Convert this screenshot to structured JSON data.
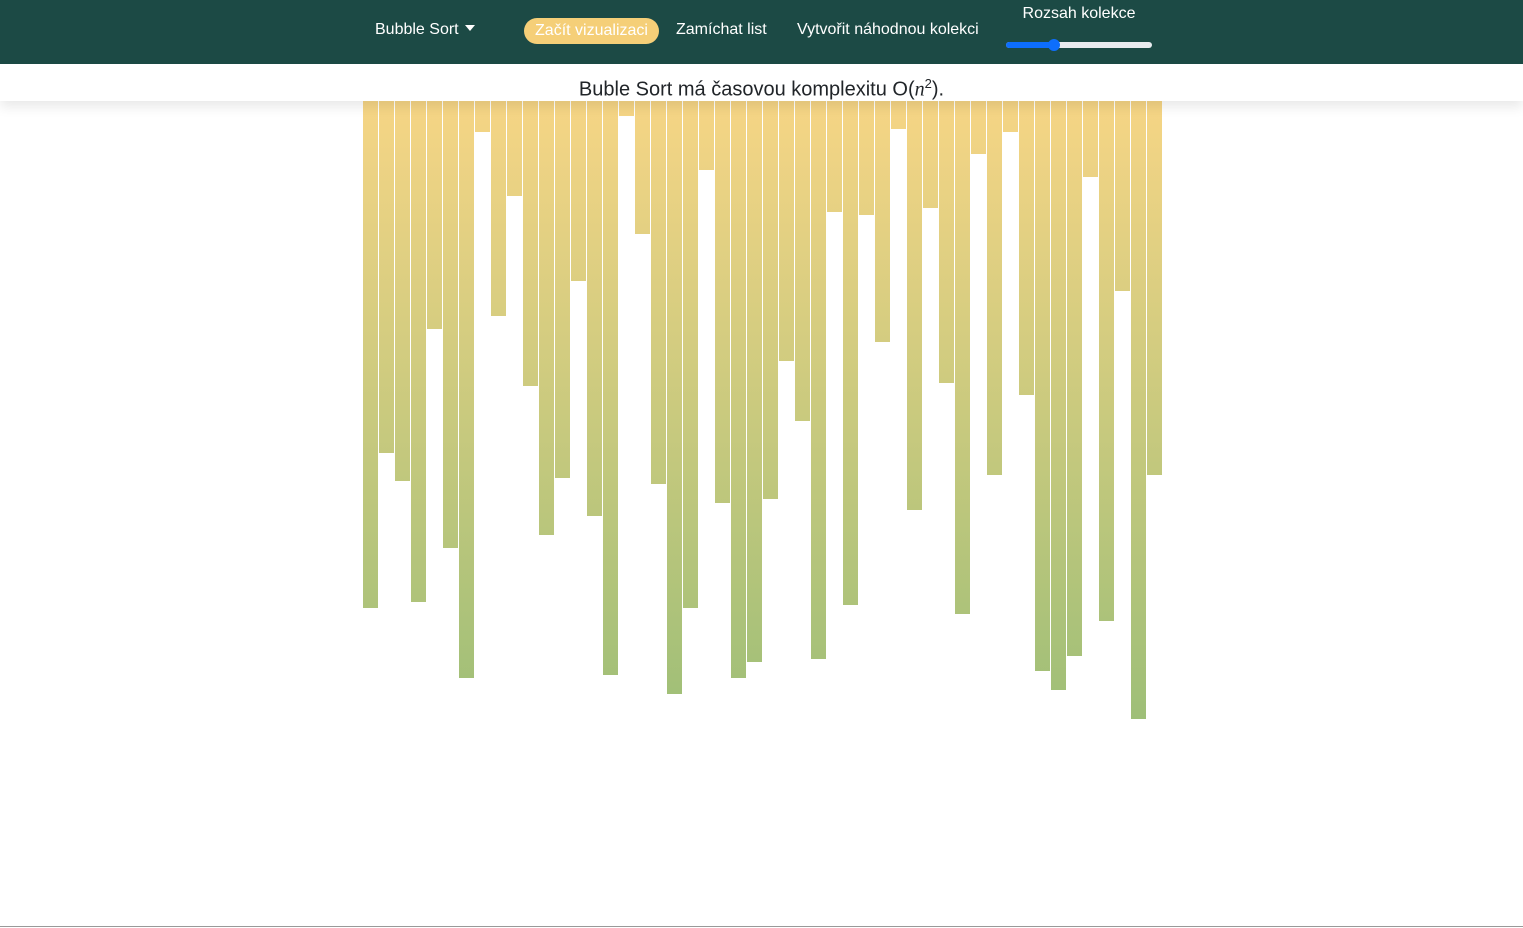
{
  "navbar": {
    "algorithm_label": "Bubble Sort",
    "start_label": "Začít vizualizaci",
    "shuffle_label": "Zamíchat list",
    "random_label": "Vytvořit náhodnou kolekci",
    "range_label": "Rozsah kolekce",
    "range_value_fraction": 0.33
  },
  "info": {
    "prefix": "Buble Sort má časovou komplexitu O(",
    "var": "n",
    "exp": "2",
    "suffix": ")."
  },
  "colors": {
    "navbar_bg": "#1c4a45",
    "start_button_bg": "#f5cf78",
    "bar_top": "#f6d585",
    "bar_bottom": "#9bbe77",
    "slider_accent": "#0d6efd"
  },
  "chart_data": {
    "type": "bar",
    "values": [
      507,
      352,
      380,
      501,
      228,
      447,
      577,
      31,
      215,
      95,
      285,
      434,
      377,
      180,
      415,
      574,
      15,
      133,
      383,
      593,
      507,
      69,
      402,
      577,
      561,
      398,
      260,
      320,
      558,
      111,
      504,
      114,
      241,
      28,
      409,
      107,
      282,
      513,
      53,
      374,
      31,
      294,
      570,
      589,
      555,
      76,
      520,
      190,
      618,
      374
    ]
  }
}
